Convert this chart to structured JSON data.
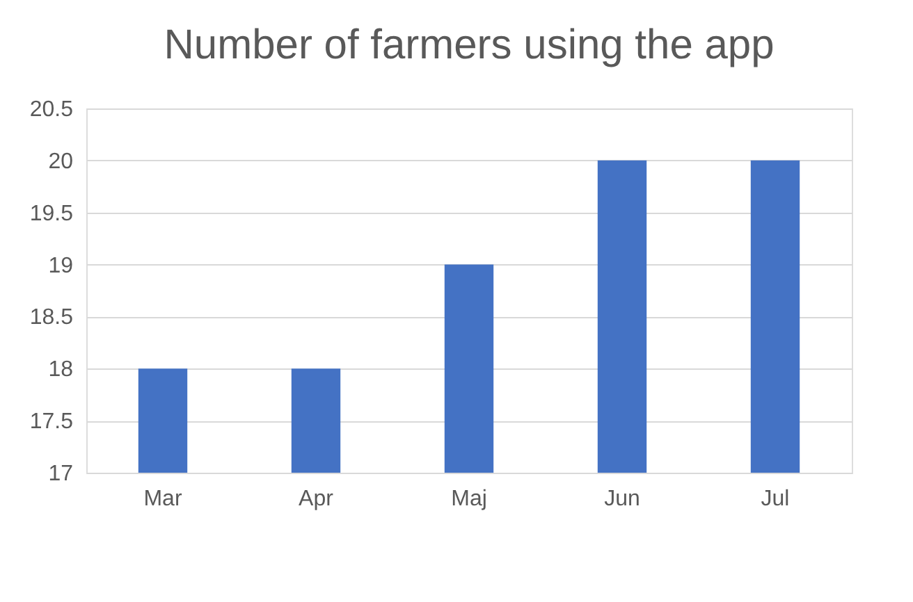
{
  "chart_data": {
    "type": "bar",
    "title": "Number of farmers using the app",
    "categories": [
      "Mar",
      "Apr",
      "Maj",
      "Jun",
      "Jul"
    ],
    "values": [
      18,
      18,
      19,
      20,
      20
    ],
    "color": "#4472c4",
    "ylim": [
      17,
      20.5
    ],
    "yticks": [
      17,
      17.5,
      18,
      18.5,
      19,
      19.5,
      20,
      20.5
    ],
    "grid": "y"
  }
}
